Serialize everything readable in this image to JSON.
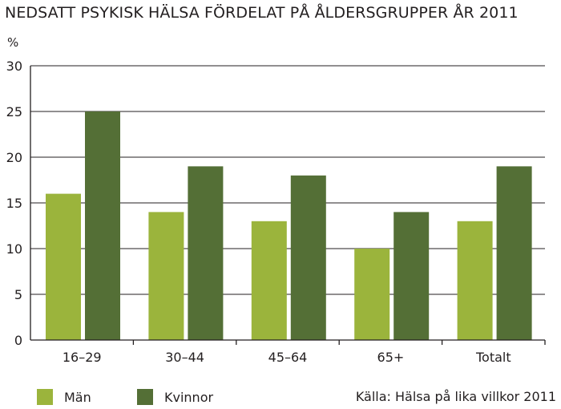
{
  "chart_data": {
    "type": "bar",
    "title": "NEDSATT PSYKISK HÄLSA FÖRDELAT PÅ ÅLDERSGRUPPER ÅR 2011",
    "ylabel": "%",
    "xlabel": "",
    "categories": [
      "16–29",
      "30–44",
      "45–64",
      "65+",
      "Totalt"
    ],
    "series": [
      {
        "name": "Män",
        "values": [
          16,
          14,
          13,
          10,
          13
        ],
        "color": "#9bb43c"
      },
      {
        "name": "Kvinnor",
        "values": [
          25,
          19,
          18,
          14,
          19
        ],
        "color": "#546f36"
      }
    ],
    "ylim": [
      0,
      30
    ],
    "yticks": [
      0,
      5,
      10,
      15,
      20,
      25,
      30
    ],
    "grid": true,
    "legend_position": "bottom-left",
    "source": "Källa: Hälsa på lika villkor 2011"
  }
}
